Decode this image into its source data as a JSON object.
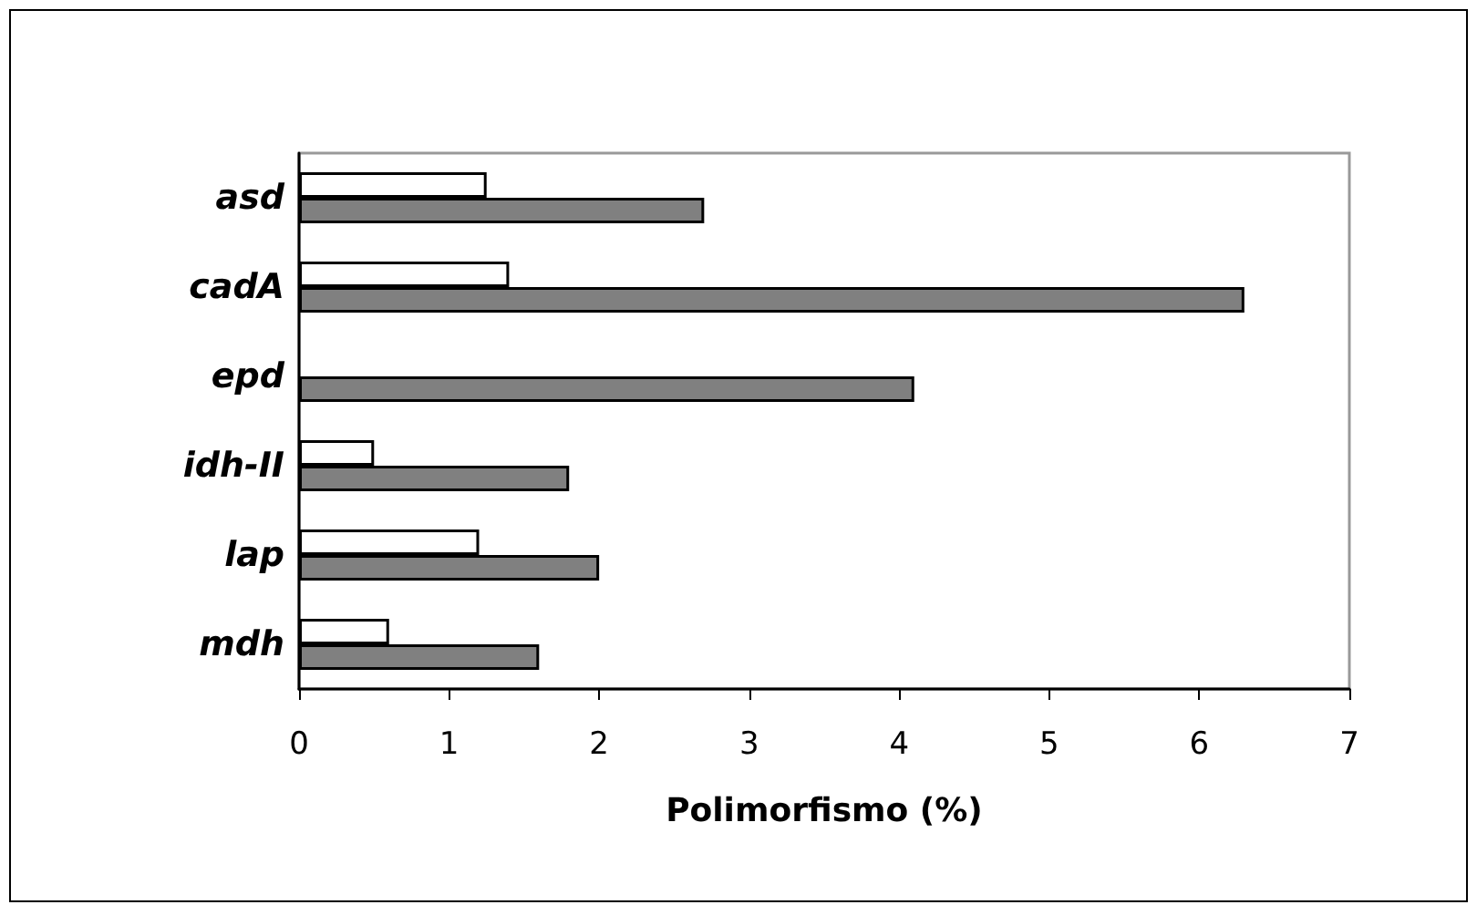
{
  "chart_data": {
    "type": "bar",
    "orientation": "horizontal",
    "xlabel": "Polimorfismo (%)",
    "categories": [
      "asd",
      "cadA",
      "epd",
      "idh-II",
      "lap",
      "mdh"
    ],
    "series": [
      {
        "color": "#ffffff",
        "values": [
          1.25,
          1.4,
          null,
          0.5,
          1.2,
          0.6
        ]
      },
      {
        "color": "#808080",
        "values": [
          2.7,
          6.3,
          4.1,
          1.8,
          2.0,
          1.6
        ]
      }
    ],
    "xlim": [
      0,
      7
    ],
    "xticks": [
      0,
      1,
      2,
      3,
      4,
      5,
      6,
      7
    ],
    "grid": false
  }
}
